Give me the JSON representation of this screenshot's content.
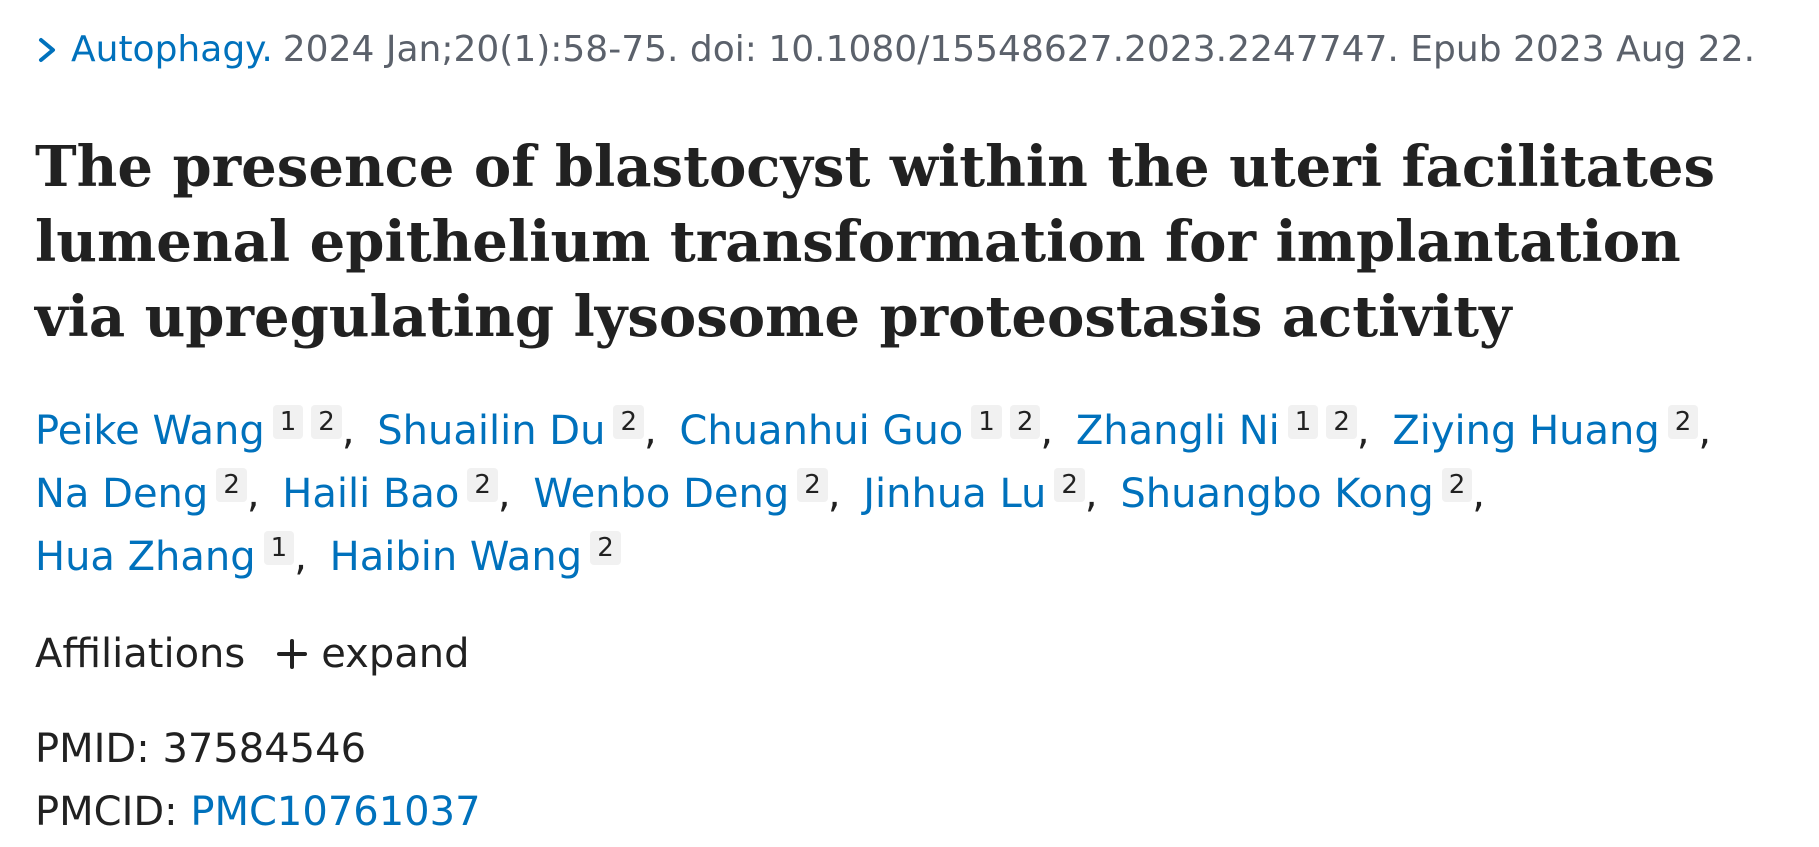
{
  "citation": {
    "journal": "Autophagy.",
    "details": "2024 Jan;20(1):58-75. doi: 10.1080/15548627.2023.2247747. Epub 2023 Aug 22."
  },
  "title": "The presence of blastocyst within the uteri facilitates lumenal epithelium transformation for implantation via upregulating lysosome proteostasis activity",
  "authors": [
    {
      "name": "Peike Wang",
      "affiliations": [
        "1",
        "2"
      ]
    },
    {
      "name": "Shuailin Du",
      "affiliations": [
        "2"
      ]
    },
    {
      "name": "Chuanhui Guo",
      "affiliations": [
        "1",
        "2"
      ]
    },
    {
      "name": "Zhangli Ni",
      "affiliations": [
        "1",
        "2"
      ]
    },
    {
      "name": "Ziying Huang",
      "affiliations": [
        "2"
      ]
    },
    {
      "name": "Na Deng",
      "affiliations": [
        "2"
      ]
    },
    {
      "name": "Haili Bao",
      "affiliations": [
        "2"
      ]
    },
    {
      "name": "Wenbo Deng",
      "affiliations": [
        "2"
      ]
    },
    {
      "name": "Jinhua Lu",
      "affiliations": [
        "2"
      ]
    },
    {
      "name": "Shuangbo Kong",
      "affiliations": [
        "2"
      ]
    },
    {
      "name": "Hua Zhang",
      "affiliations": [
        "1"
      ]
    },
    {
      "name": "Haibin Wang",
      "affiliations": [
        "2"
      ]
    }
  ],
  "affiliations": {
    "label": "Affiliations",
    "toggle_label": "expand"
  },
  "identifiers": {
    "pmid_label": "PMID:",
    "pmid_value": "37584546",
    "pmcid_label": "PMCID:",
    "pmcid_value": "PMC10761037"
  },
  "icons": {
    "chevron": "chevron-right-icon",
    "plus": "plus-icon"
  },
  "colors": {
    "link": "#0071bc",
    "text": "#212121",
    "muted": "#5b616b",
    "badge_bg": "#f1f1f1"
  }
}
